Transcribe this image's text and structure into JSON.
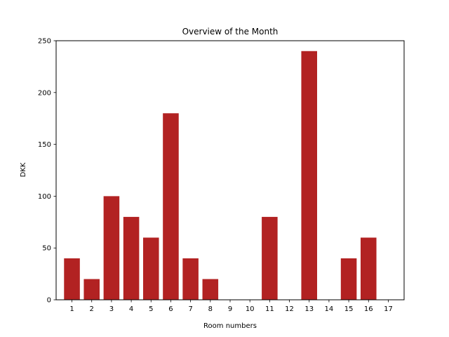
{
  "chart_data": {
    "type": "bar",
    "title": "Overview of the Month",
    "xlabel": "Room numbers",
    "ylabel": "DKK",
    "categories": [
      "1",
      "2",
      "3",
      "4",
      "5",
      "6",
      "7",
      "8",
      "9",
      "10",
      "11",
      "12",
      "13",
      "14",
      "15",
      "16",
      "17"
    ],
    "values": [
      40,
      20,
      100,
      80,
      60,
      180,
      40,
      20,
      0,
      0,
      80,
      0,
      240,
      0,
      40,
      60,
      0
    ],
    "ylim": [
      0,
      250
    ],
    "yticks": [
      0,
      50,
      100,
      150,
      200,
      250
    ],
    "grid": false,
    "bar_color": "#b22222"
  }
}
